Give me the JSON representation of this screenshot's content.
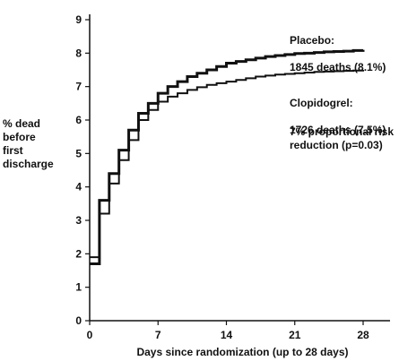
{
  "chart_data": {
    "type": "line",
    "step": true,
    "xlabel": "Days since randomization (up to 28 days)",
    "ylabel": "% dead\nbefore\nfirst\ndischarge",
    "xlim": [
      0,
      28
    ],
    "ylim": [
      0,
      9
    ],
    "xticks": [
      0,
      7,
      14,
      21,
      28
    ],
    "yticks": [
      0,
      1,
      2,
      3,
      4,
      5,
      6,
      7,
      8,
      9
    ],
    "grid": false,
    "series": [
      {
        "name": "Placebo",
        "label_line1": "Placebo:",
        "label_line2": "1845 deaths (8.1%)",
        "line_width": 3,
        "x": [
          0,
          1,
          2,
          3,
          4,
          5,
          6,
          7,
          8,
          9,
          10,
          11,
          12,
          13,
          14,
          15,
          16,
          17,
          18,
          19,
          20,
          21,
          22,
          23,
          24,
          25,
          26,
          27,
          28
        ],
        "y": [
          1.7,
          3.6,
          4.4,
          5.1,
          5.7,
          6.2,
          6.5,
          6.8,
          7.0,
          7.15,
          7.3,
          7.4,
          7.5,
          7.6,
          7.7,
          7.75,
          7.8,
          7.85,
          7.9,
          7.93,
          7.96,
          7.99,
          8.0,
          8.02,
          8.04,
          8.05,
          8.06,
          8.08,
          8.1
        ]
      },
      {
        "name": "Clopidogrel",
        "label_line1": "Clopidogrel:",
        "label_line2": "1726 deaths (7.5%)",
        "line_width": 2,
        "x": [
          0,
          1,
          2,
          3,
          4,
          5,
          6,
          7,
          8,
          9,
          10,
          11,
          12,
          13,
          14,
          15,
          16,
          17,
          18,
          19,
          20,
          21,
          22,
          23,
          24,
          25,
          26,
          27,
          28
        ],
        "y": [
          1.9,
          3.2,
          4.1,
          4.8,
          5.4,
          6.0,
          6.3,
          6.55,
          6.7,
          6.8,
          6.9,
          6.98,
          7.05,
          7.1,
          7.15,
          7.2,
          7.25,
          7.3,
          7.33,
          7.36,
          7.38,
          7.4,
          7.42,
          7.44,
          7.45,
          7.46,
          7.47,
          7.48,
          7.5
        ]
      }
    ],
    "annotation": "7% proportional risk\nreduction (p=0.03)"
  },
  "colors": {
    "line": "#111111",
    "axis": "#111111",
    "background": "#ffffff"
  }
}
